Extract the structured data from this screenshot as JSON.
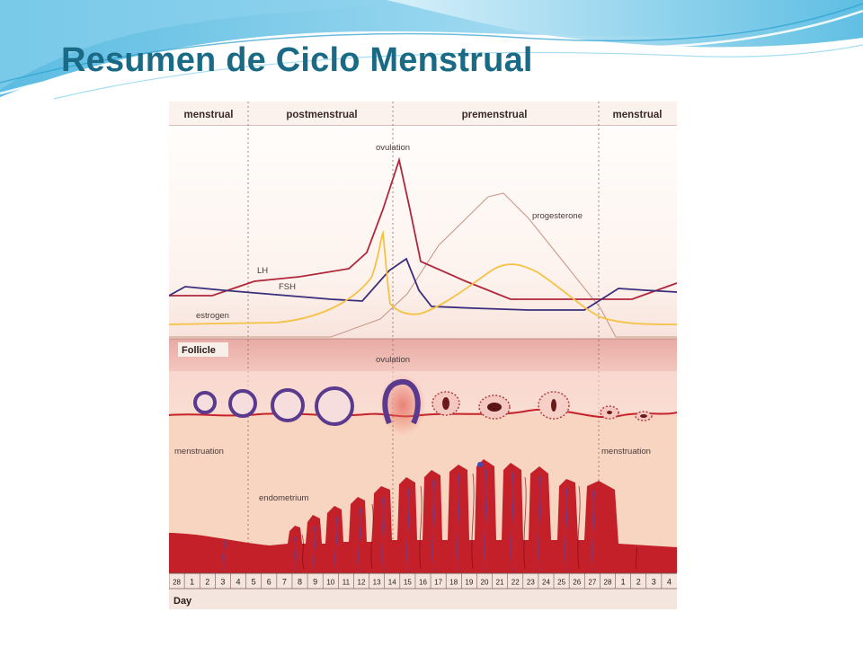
{
  "slide": {
    "title": "Resumen de Ciclo Menstrual"
  },
  "colors": {
    "title": "#1a6a86",
    "lh": "#b0283c",
    "fsh": "#3a2e7c",
    "estrogen": "#f5c243",
    "progesterone": "#c89a8a",
    "endometrium": "#c3202a",
    "vessels": "#3a4ec0"
  },
  "diagram": {
    "phases": [
      {
        "id": "menstrual-1",
        "label": "menstrual"
      },
      {
        "id": "postmenstrual",
        "label": "postmenstrual"
      },
      {
        "id": "premenstrual",
        "label": "premenstrual"
      },
      {
        "id": "menstrual-2",
        "label": "menstrual"
      }
    ],
    "hormones": {
      "ovulation_label": "ovulation",
      "lh_label": "LH",
      "fsh_label": "FSH",
      "estrogen_label": "estrogen",
      "progesterone_label": "progesterone"
    },
    "ovary": {
      "follicle_label": "Follicle",
      "ovulation_label": "ovulation"
    },
    "uterus": {
      "menstruation_label_left": "menstruation",
      "menstruation_label_right": "menstruation",
      "endometrium_label": "endometrium"
    },
    "days": [
      "28",
      "1",
      "2",
      "3",
      "4",
      "5",
      "6",
      "7",
      "8",
      "9",
      "10",
      "11",
      "12",
      "13",
      "14",
      "15",
      "16",
      "17",
      "18",
      "19",
      "20",
      "21",
      "22",
      "23",
      "24",
      "25",
      "26",
      "27",
      "28",
      "1",
      "2",
      "3",
      "4"
    ],
    "day_axis_label": "Day"
  }
}
